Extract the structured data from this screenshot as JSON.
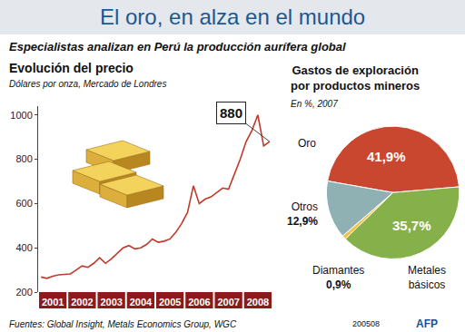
{
  "title": "El oro, en alza en el mundo",
  "subtitle": "Especialistas analizan en Perú la producción aurífera global",
  "sources": "Fuentes: Global Insight, Metals Economics Group, WGC",
  "code": "200508",
  "credit": "AFP",
  "chart_data": [
    {
      "type": "line",
      "title": "Evolución del precio",
      "subtitle": "Dólares por onza, Mercado de Londres",
      "categories": [
        null,
        null,
        "2001",
        null,
        null,
        null,
        null,
        "2002",
        null,
        null,
        null,
        null,
        "2003",
        null,
        null,
        null,
        null,
        "2004",
        null,
        null,
        null,
        null,
        "2005",
        null,
        null,
        null,
        null,
        "2006",
        null,
        null,
        null,
        null,
        "2007",
        null,
        null,
        null,
        null,
        "2008",
        null,
        null
      ],
      "values": [
        268,
        262,
        272,
        278,
        280,
        282,
        300,
        318,
        312,
        330,
        355,
        330,
        350,
        375,
        400,
        410,
        395,
        400,
        415,
        440,
        425,
        430,
        440,
        470,
        510,
        560,
        680,
        600,
        620,
        630,
        650,
        670,
        665,
        730,
        800,
        880,
        930,
        1000,
        860,
        880
      ],
      "value_labels": [
        null,
        null,
        null,
        null,
        null,
        null,
        null,
        null,
        null,
        null,
        null,
        null,
        null,
        null,
        null,
        null,
        null,
        null,
        null,
        null,
        null,
        null,
        null,
        null,
        null,
        null,
        null,
        null,
        null,
        null,
        null,
        null,
        null,
        null,
        null,
        null,
        null,
        null,
        null,
        "880"
      ],
      "color": "#c0392b",
      "ylim": [
        200,
        1040
      ],
      "yticks": [
        200,
        400,
        600,
        800,
        1000
      ],
      "grid": false
    },
    {
      "type": "pie",
      "title": "Gastos de exploración por productos mineros",
      "subtitle": "En %, 2007",
      "categories": [
        "Oro",
        "Metales básicos",
        "Diamantes",
        "Otros"
      ],
      "values": [
        41.9,
        35.7,
        0.9,
        12.9
      ],
      "value_labels": [
        "41,9%",
        "35,7%",
        "0,9%",
        "12,9%"
      ],
      "colors": [
        "#c9472f",
        "#86b04a",
        "#f2c14e",
        "#8fb1b3"
      ]
    }
  ]
}
